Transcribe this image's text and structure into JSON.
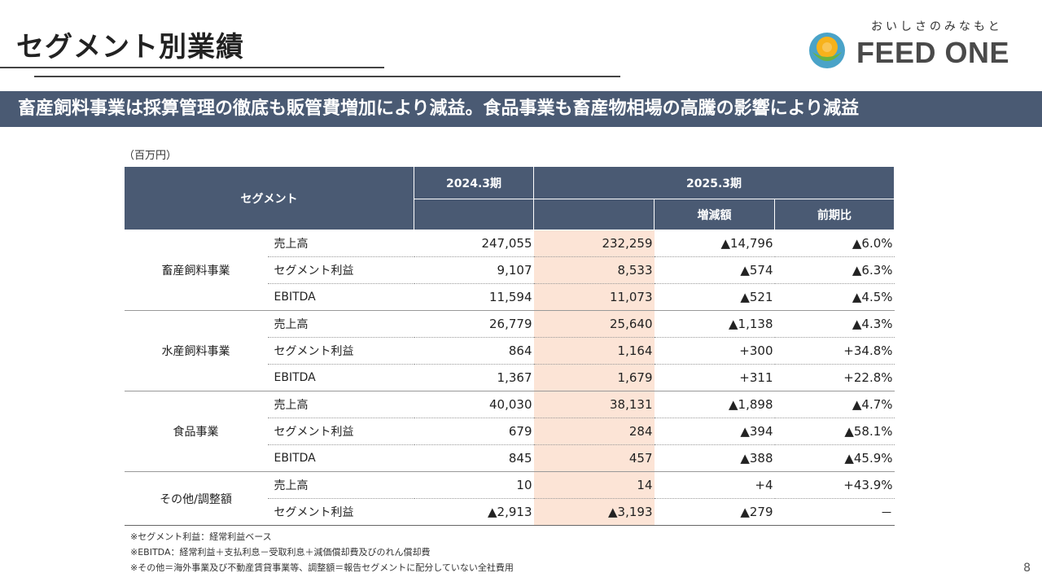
{
  "title": "セグメント別業績",
  "logo": {
    "tagline": "おいしさのみなもと",
    "name": "FEED ONE"
  },
  "banner": "畜産飼料事業は採算管理の徹底も販管費増加により減益。食品事業も畜産物相場の高騰の影響により減益",
  "unit": "（百万円）",
  "table": {
    "header": {
      "segment": "セグメント",
      "fy2024": "2024.3期",
      "fy2025": "2025.3期",
      "change": "増減額",
      "ratio": "前期比"
    },
    "rows": [
      {
        "segment": "畜産飼料事業",
        "item": "売上高",
        "fy2024": "247,055",
        "fy2025": "232,259",
        "change": "▲14,796",
        "ratio": "▲6.0%"
      },
      {
        "segment": "",
        "item": "セグメント利益",
        "fy2024": "9,107",
        "fy2025": "8,533",
        "change": "▲574",
        "ratio": "▲6.3%"
      },
      {
        "segment": "",
        "item": "EBITDA",
        "fy2024": "11,594",
        "fy2025": "11,073",
        "change": "▲521",
        "ratio": "▲4.5%"
      },
      {
        "segment": "水産飼料事業",
        "item": "売上高",
        "fy2024": "26,779",
        "fy2025": "25,640",
        "change": "▲1,138",
        "ratio": "▲4.3%"
      },
      {
        "segment": "",
        "item": "セグメント利益",
        "fy2024": "864",
        "fy2025": "1,164",
        "change": "+300",
        "ratio": "+34.8%"
      },
      {
        "segment": "",
        "item": "EBITDA",
        "fy2024": "1,367",
        "fy2025": "1,679",
        "change": "+311",
        "ratio": "+22.8%"
      },
      {
        "segment": "食品事業",
        "item": "売上高",
        "fy2024": "40,030",
        "fy2025": "38,131",
        "change": "▲1,898",
        "ratio": "▲4.7%"
      },
      {
        "segment": "",
        "item": "セグメント利益",
        "fy2024": "679",
        "fy2025": "284",
        "change": "▲394",
        "ratio": "▲58.1%"
      },
      {
        "segment": "",
        "item": "EBITDA",
        "fy2024": "845",
        "fy2025": "457",
        "change": "▲388",
        "ratio": "▲45.9%"
      },
      {
        "segment": "その他/調整額",
        "item": "売上高",
        "fy2024": "10",
        "fy2025": "14",
        "change": "+4",
        "ratio": "+43.9%"
      },
      {
        "segment": "",
        "item": "セグメント利益",
        "fy2024": "▲2,913",
        "fy2025": "▲3,193",
        "change": "▲279",
        "ratio": "－"
      }
    ]
  },
  "notes": [
    "※セグメント利益：経常利益ベース",
    "※EBITDA：経常利益＋支払利息－受取利息＋減価償却費及びのれん償却費",
    "※その他＝海外事業及び不動産賃貸事業等、調整額＝報告セグメントに配分していない全社費用"
  ],
  "page_number": "8",
  "colors": {
    "header": "#4a5a73",
    "highlight": "#fce4d6"
  }
}
